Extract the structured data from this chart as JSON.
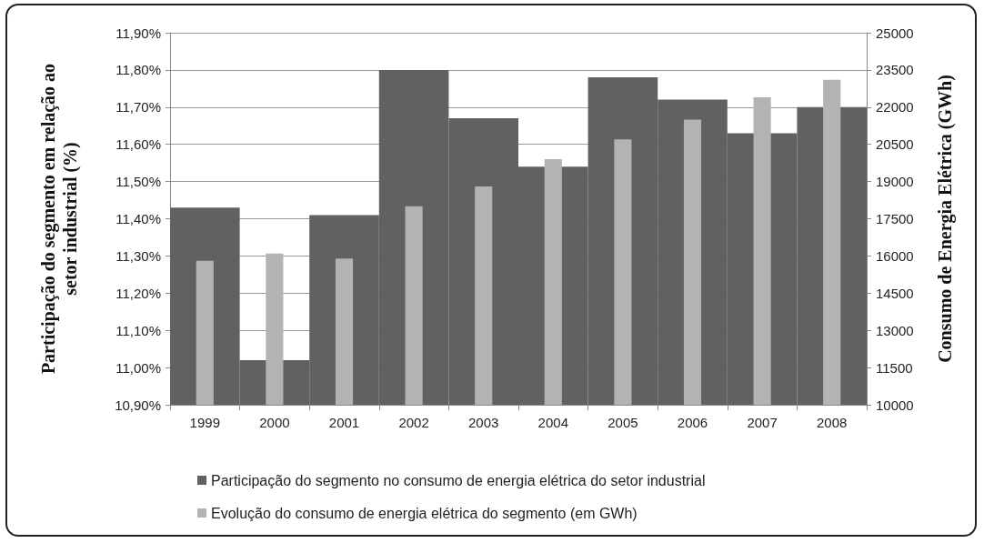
{
  "chart_data": {
    "type": "bar",
    "ylabel": "Participação do segmento em relação ao\nsetor industrial (%)",
    "y2label": "Consumo de Energia Elétrica (GWh)",
    "categories": [
      "1999",
      "2000",
      "2001",
      "2002",
      "2003",
      "2004",
      "2005",
      "2006",
      "2007",
      "2008"
    ],
    "series": [
      {
        "name": "Participação do segmento no consumo de energia elétrica do setor industrial",
        "color": "#62615f",
        "values": [
          11.43,
          11.02,
          11.41,
          11.8,
          11.67,
          11.54,
          11.78,
          11.72,
          11.63,
          11.7
        ]
      },
      {
        "name": "Evolução do consumo de energia elétrica do segmento (em GWh)",
        "color": "#b3b3b1",
        "axis": "y2",
        "values": [
          15800,
          16100,
          15900,
          18000,
          18800,
          19900,
          20700,
          21500,
          22400,
          23100
        ]
      }
    ],
    "ylim": [
      10.9,
      11.9
    ],
    "yticks": [
      {
        "value": 10.9,
        "label": "10,90%"
      },
      {
        "value": 11.0,
        "label": "11,00%"
      },
      {
        "value": 11.1,
        "label": "11,10%"
      },
      {
        "value": 11.2,
        "label": "11,20%"
      },
      {
        "value": 11.3,
        "label": "11,30%"
      },
      {
        "value": 11.4,
        "label": "11,40%"
      },
      {
        "value": 11.5,
        "label": "11,50%"
      },
      {
        "value": 11.6,
        "label": "11,60%"
      },
      {
        "value": 11.7,
        "label": "11,70%"
      },
      {
        "value": 11.8,
        "label": "11,80%"
      },
      {
        "value": 11.9,
        "label": "11,90%"
      }
    ],
    "y2lim": [
      10000,
      25000
    ],
    "y2ticks": [
      10000,
      11500,
      13000,
      14500,
      16000,
      17500,
      19000,
      20500,
      22000,
      23500,
      25000
    ],
    "grid": "y",
    "legend": "bottom"
  }
}
